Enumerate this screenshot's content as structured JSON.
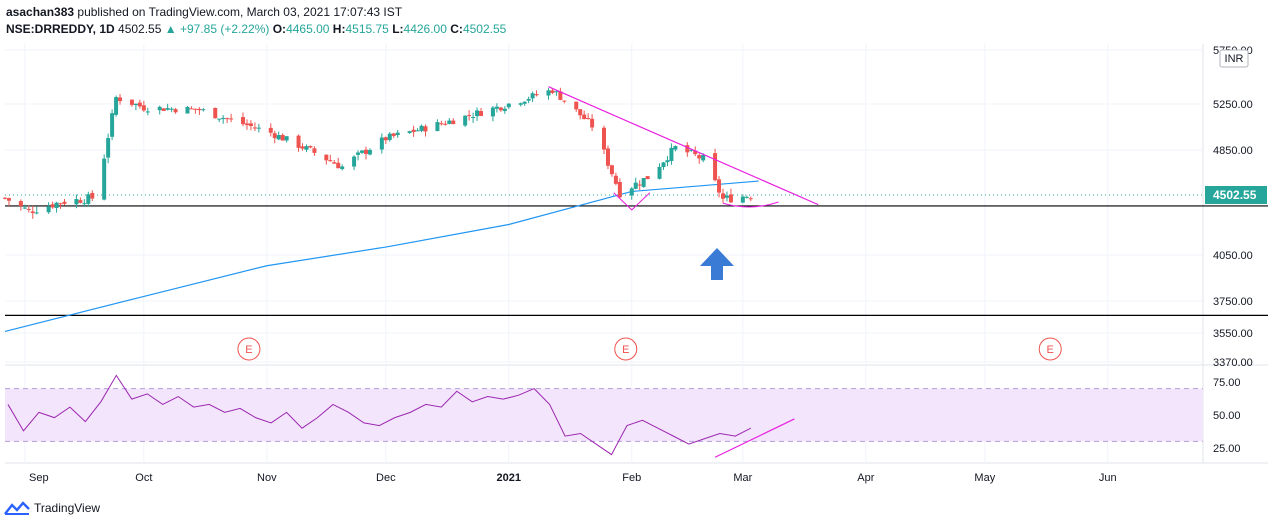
{
  "header": {
    "publisher_line_user": "asachan383",
    "publisher_line_rest": " published on TradingView.com, March 03, 2021 17:07:43 IST",
    "symbol": "NSE:DRREDDY, 1D",
    "last": "4502.55",
    "change": "▲ +97.85 (+2.22%)",
    "o_label": "O:",
    "o_val": "4465.00",
    "h_label": "H:",
    "h_val": "4515.75",
    "l_label": "L:",
    "l_val": "4426.00",
    "c_label": "C:",
    "c_val": "4502.55"
  },
  "currency_badge": "INR",
  "price_tag": "4502.55",
  "footer_logo": "TradingView",
  "earnings_marker": "E",
  "colors": {
    "up": "#26a69a",
    "down": "#ef5350",
    "ma": "#2196f3",
    "trendline": "#e91ee0",
    "rsi": "#9c27b0",
    "rsi_band": "#f3e5fc",
    "arrow": "#3a7bd5"
  },
  "chart_data": [
    {
      "type": "candlestick",
      "title": "",
      "y_ticks": [
        "5750.00",
        "5250.00",
        "4850.00",
        "4502.55",
        "4050.00",
        "3750.00",
        "3550.00",
        "3370.00"
      ],
      "ylim": [
        3370,
        5750
      ],
      "x_ticks": [
        "Sep",
        "Oct",
        "Nov",
        "Dec",
        "2021",
        "Feb",
        "Mar",
        "Apr",
        "May",
        "Jun"
      ],
      "horizontal_lines": [
        4420,
        3660
      ],
      "grid": true,
      "approx_close_path": [
        {
          "x": "2020-08-27",
          "close": 4480
        },
        {
          "x": "2020-09-02",
          "close": 4380
        },
        {
          "x": "2020-09-10",
          "close": 4450
        },
        {
          "x": "2020-09-18",
          "close": 4480
        },
        {
          "x": "2020-09-21",
          "close": 4800
        },
        {
          "x": "2020-09-24",
          "close": 5310
        },
        {
          "x": "2020-10-01",
          "close": 5220
        },
        {
          "x": "2020-10-15",
          "close": 5200
        },
        {
          "x": "2020-11-02",
          "close": 5000
        },
        {
          "x": "2020-11-20",
          "close": 4720
        },
        {
          "x": "2020-12-01",
          "close": 4950
        },
        {
          "x": "2020-12-15",
          "close": 5080
        },
        {
          "x": "2020-12-31",
          "close": 5240
        },
        {
          "x": "2021-01-12",
          "close": 5380
        },
        {
          "x": "2021-01-22",
          "close": 5060
        },
        {
          "x": "2021-01-29",
          "close": 4520
        },
        {
          "x": "2021-02-05",
          "close": 4640
        },
        {
          "x": "2021-02-12",
          "close": 4870
        },
        {
          "x": "2021-02-19",
          "close": 4780
        },
        {
          "x": "2021-02-24",
          "close": 4470
        },
        {
          "x": "2021-03-03",
          "close": 4502.55
        }
      ],
      "moving_average": [
        {
          "x": "2020-08-27",
          "y": 3560
        },
        {
          "x": "2020-10-01",
          "y": 3780
        },
        {
          "x": "2020-11-01",
          "y": 3980
        },
        {
          "x": "2020-12-01",
          "y": 4110
        },
        {
          "x": "2021-01-01",
          "y": 4280
        },
        {
          "x": "2021-02-01",
          "y": 4530
        },
        {
          "x": "2021-03-05",
          "y": 4610
        }
      ],
      "trendline": [
        {
          "x": "2021-01-11",
          "y": 5410
        },
        {
          "x": "2021-03-20",
          "y": 4430
        }
      ],
      "earnings_events": [
        "2020-10-29",
        "2021-02-01",
        "2021-05-19"
      ]
    },
    {
      "type": "line",
      "title": "",
      "y_ticks": [
        "75.00",
        "50.00",
        "25.00"
      ],
      "band": [
        30,
        70
      ],
      "ylim": [
        15,
        85
      ],
      "values_approx": [
        58,
        38,
        52,
        48,
        56,
        45,
        60,
        80,
        62,
        66,
        58,
        64,
        56,
        58,
        52,
        55,
        48,
        44,
        52,
        40,
        48,
        58,
        52,
        44,
        42,
        48,
        52,
        58,
        56,
        68,
        60,
        64,
        62,
        65,
        70,
        58,
        34,
        36,
        28,
        20,
        42,
        46,
        40,
        34,
        28,
        32,
        36,
        34,
        40
      ]
    }
  ]
}
